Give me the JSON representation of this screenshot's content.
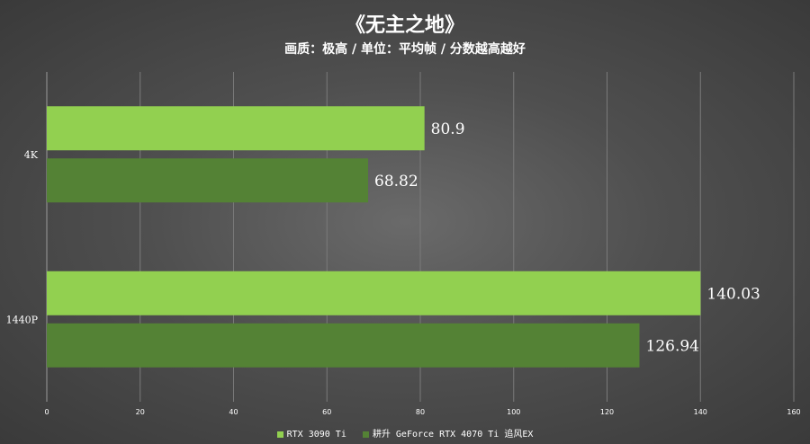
{
  "chart_data": {
    "type": "bar",
    "orientation": "horizontal",
    "title": "《无主之地》",
    "subtitle": "画质：极高 / 单位：平均帧 / 分数越高越好",
    "categories": [
      "4K",
      "1440P"
    ],
    "series": [
      {
        "name": "RTX 3090 Ti",
        "values": [
          80.9,
          140.03
        ],
        "labels": [
          "80.9",
          "140.03"
        ],
        "color": "#92d050"
      },
      {
        "name": "耕升 GeForce RTX 4070 Ti 追风EX",
        "values": [
          68.82,
          126.94
        ],
        "labels": [
          "68.82",
          "126.94"
        ],
        "color": "#548235"
      }
    ],
    "xlim": [
      0,
      160
    ],
    "xticks": [
      0,
      20,
      40,
      60,
      80,
      100,
      120,
      140,
      160
    ],
    "grid": true,
    "legend_position": "bottom"
  }
}
